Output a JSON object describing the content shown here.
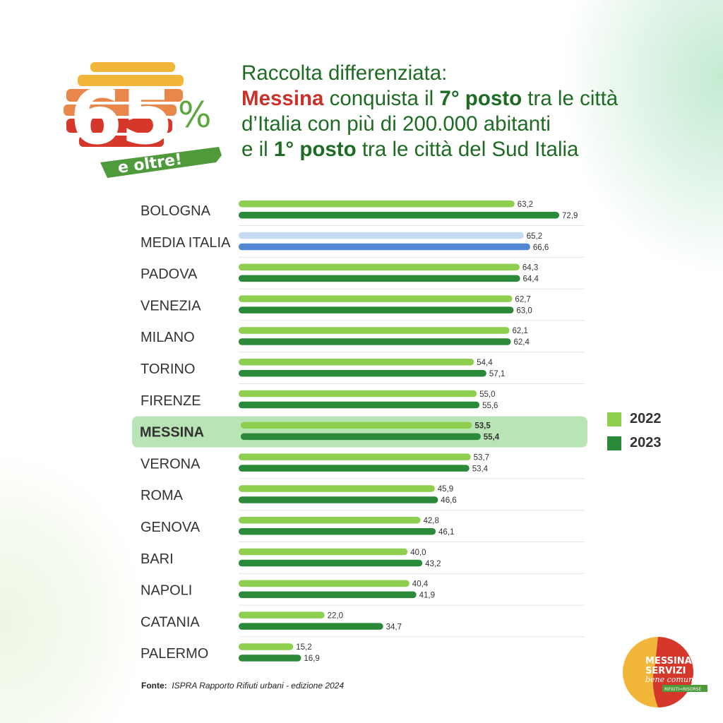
{
  "logo_badge": {
    "number": "65",
    "symbol": "%",
    "tagline": "e oltre!"
  },
  "title": {
    "line1": "Raccolta differenziata:",
    "line2_city": "Messina",
    "line2_a": " conquista il ",
    "line2_rank": "7° posto",
    "line2_b": " tra le città",
    "line3": "d’Italia con più di 200.000 abitanti",
    "line4_a": "e il ",
    "line4_rank": "1° posto",
    "line4_b": " tra le città del Sud Italia"
  },
  "colors": {
    "c2022": "#8ecf4f",
    "c2023": "#2a8a3a",
    "avg2022": "#c6daf3",
    "avg2023": "#5289d2",
    "highlight": "#b9e4b6",
    "accent_red": "#c8322a",
    "title_green": "#1e6b23"
  },
  "chart_data": {
    "type": "bar",
    "orientation": "horizontal",
    "title": "Raccolta differenziata",
    "categories": [
      "BOLOGNA",
      "MEDIA ITALIA",
      "PADOVA",
      "VENEZIA",
      "MILANO",
      "TORINO",
      "FIRENZE",
      "MESSINA",
      "VERONA",
      "ROMA",
      "GENOVA",
      "BARI",
      "NAPOLI",
      "CATANIA",
      "PALERMO"
    ],
    "series": [
      {
        "name": "2022",
        "values": [
          63.2,
          65.2,
          64.3,
          62.7,
          62.1,
          54.4,
          55.0,
          53.5,
          53.7,
          45.9,
          42.8,
          40.0,
          40.4,
          22.0,
          15.2
        ]
      },
      {
        "name": "2023",
        "values": [
          72.9,
          66.6,
          64.4,
          63.0,
          62.4,
          57.1,
          55.6,
          55.4,
          53.4,
          46.6,
          46.1,
          43.2,
          41.9,
          34.7,
          16.9
        ]
      }
    ],
    "value_labels": {
      "2022": [
        "63,2",
        "65,2",
        "64,3",
        "62,7",
        "62,1",
        "54,4",
        "55,0",
        "53,5",
        "53,7",
        "45,9",
        "42,8",
        "40,0",
        "40,4",
        "22,0",
        "15,2"
      ],
      "2023": [
        "72,9",
        "66,6",
        "64,4",
        "63,0",
        "62,4",
        "57,1",
        "55,6",
        "55,4",
        "53,4",
        "46,6",
        "46,1",
        "43,2",
        "41,9",
        "34,7",
        "16,9"
      ]
    },
    "highlight": "MESSINA",
    "average_category": "MEDIA ITALIA",
    "legend": [
      "2022",
      "2023"
    ],
    "legend_position": "right",
    "grid": false
  },
  "source": {
    "label": "Fonte:",
    "text": "ISPRA Rapporto Rifiuti urbani - edizione 2024"
  },
  "footer_logo": {
    "line1": "MESSINA",
    "line2": "SERVIZI",
    "line3": "bene comune",
    "tag": "RIFIUTI=RISORSE"
  }
}
